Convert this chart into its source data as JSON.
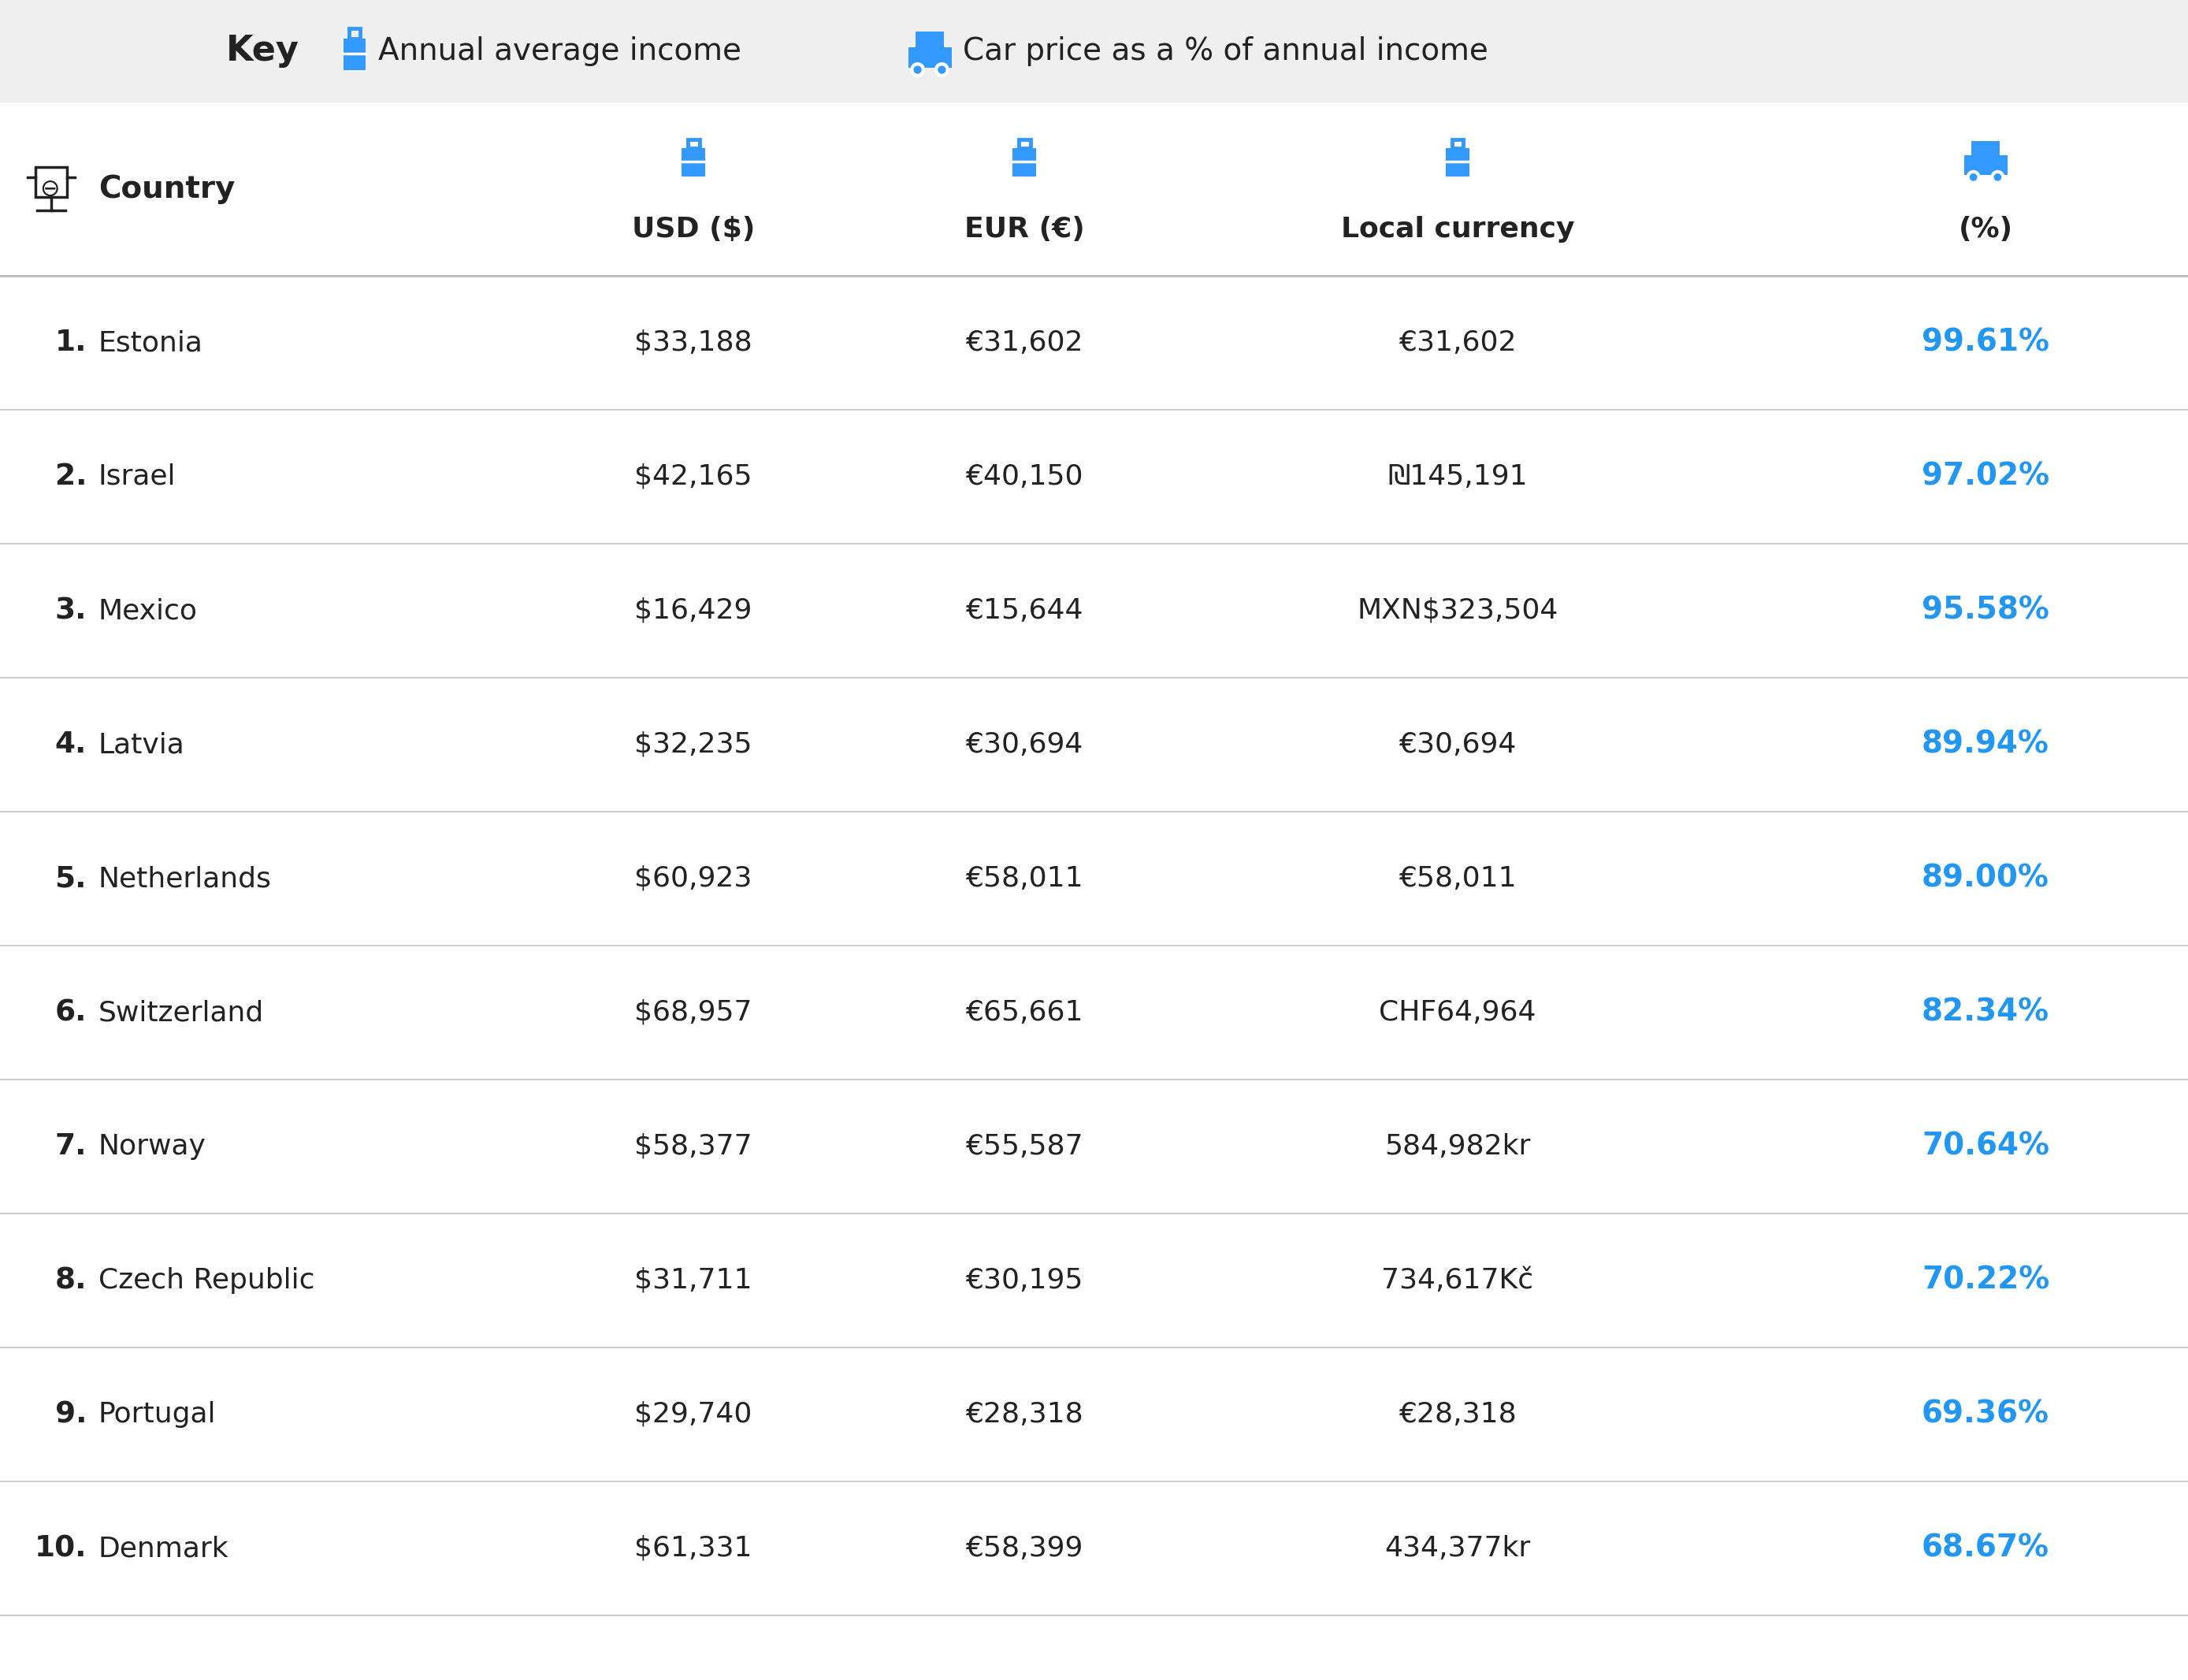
{
  "bg_color": "#efefef",
  "table_bg": "#ffffff",
  "icon_color": "#3399ff",
  "text_color_dark": "#222222",
  "text_color_blue": "#2196F3",
  "rows": [
    {
      "rank": "1.",
      "country": "Estonia",
      "usd": "$33,188",
      "eur": "€31,602",
      "local": "€31,602",
      "pct": "99.61%"
    },
    {
      "rank": "2.",
      "country": "Israel",
      "usd": "$42,165",
      "eur": "€40,150",
      "local": "₪145,191",
      "pct": "97.02%"
    },
    {
      "rank": "3.",
      "country": "Mexico",
      "usd": "$16,429",
      "eur": "€15,644",
      "local": "MXN$323,504",
      "pct": "95.58%"
    },
    {
      "rank": "4.",
      "country": "Latvia",
      "usd": "$32,235",
      "eur": "€30,694",
      "local": "€30,694",
      "pct": "89.94%"
    },
    {
      "rank": "5.",
      "country": "Netherlands",
      "usd": "$60,923",
      "eur": "€58,011",
      "local": "€58,011",
      "pct": "89.00%"
    },
    {
      "rank": "6.",
      "country": "Switzerland",
      "usd": "$68,957",
      "eur": "€65,661",
      "local": "CHF64,964",
      "pct": "82.34%"
    },
    {
      "rank": "7.",
      "country": "Norway",
      "usd": "$58,377",
      "eur": "€55,587",
      "local": "584,982kr",
      "pct": "70.64%"
    },
    {
      "rank": "8.",
      "country": "Czech Republic",
      "usd": "$31,711",
      "eur": "€30,195",
      "local": "734,617Kč",
      "pct": "70.22%"
    },
    {
      "rank": "9.",
      "country": "Portugal",
      "usd": "$29,740",
      "eur": "€28,318",
      "local": "€28,318",
      "pct": "69.36%"
    },
    {
      "rank": "10.",
      "country": "Denmark",
      "usd": "$61,331",
      "eur": "€58,399",
      "local": "434,377kr",
      "pct": "68.67%"
    }
  ],
  "col_headers": [
    "USD ($)",
    "EUR (€)",
    "Local currency",
    "(%)"
  ],
  "key_label": "Key",
  "legend1_label": "Annual average income",
  "legend2_label": "Car price as a % of annual income",
  "country_header": "Country",
  "key_fontsize": 28,
  "header_fontsize": 26,
  "rank_fontsize": 26,
  "country_fontsize": 26,
  "data_fontsize": 26,
  "pct_fontsize": 27
}
